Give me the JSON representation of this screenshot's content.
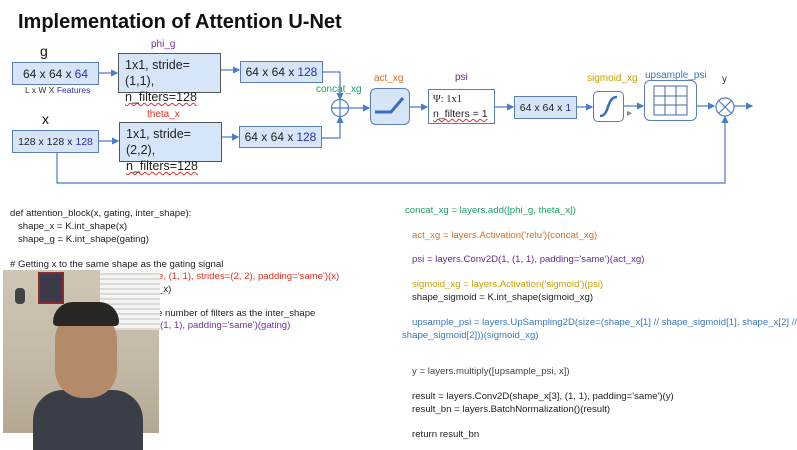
{
  "title": "Implementation of Attention U-Net",
  "diagram": {
    "g_label": "g",
    "g_dims": "64 x 64 x ",
    "g_feat": "64",
    "g_axes": "L x W X ",
    "g_axes_feat": "Features",
    "phi_label": "phi_g",
    "phi_line1": "1x1, stride=(1,1),",
    "phi_line2": "n_filters=128",
    "phi_out_dims": "64 x 64 x ",
    "phi_out_feat": "128",
    "x_label": "x",
    "x_dims": "128 x 128 x ",
    "x_feat": "128",
    "theta_label": "theta_x",
    "theta_line1": "1x1, stride=(2,2),",
    "theta_line2": "n_filters=128",
    "theta_out_dims": "64 x 64 x ",
    "theta_out_feat": "128",
    "concat_label": "concat_xg",
    "act_label": "act_xg",
    "psi_label": "psi",
    "psi_line1": "Ψ: 1x1",
    "psi_line2": "n_filters = 1",
    "psi_out_dims": "64 x 64 x ",
    "psi_out_feat": "1",
    "sigmoid_label": "sigmoid_xg",
    "upsample_label": "upsample_psi",
    "y_label": "y",
    "colors": {
      "phi": "#7030a0",
      "theta": "#e03020",
      "concat": "#1aa060",
      "act": "#d07020",
      "psi": "#6a2a8a",
      "sigmoid": "#c8a000",
      "upsample": "#3a78c0",
      "line": "#4a7cc8"
    }
  },
  "code_left": [
    "def attention_block(x, gating, inter_shape):",
    "   shape_x = K.int_shape(x)",
    "   shape_g = K.int_shape(gating)",
    "# Getting x to the same shape as the gating signal",
    "e, (1, 1), strides=(2, 2), padding='same')(x)",
    "_x)",
    "e number of filters as the inter_shape",
    "(1, 1), padding='same')(gating)"
  ],
  "code_right": [
    "concat_xg = layers.add([phi_g, theta_x])",
    "act_xg = layers.Activation('relu')(concat_xg)",
    "psi = layers.Conv2D(1, (1, 1), padding='same')(act_xg)",
    "sigmoid_xg = layers.Activation('sigmoid')(psi)",
    "shape_sigmoid = K.int_shape(sigmoid_xg)",
    "upsample_psi = layers.UpSampling2D(size=(shape_x[1] // shape_sigmoid[1], shape_x[2] //",
    "shape_sigmoid[2]))(sigmoid_xg)",
    "y = layers.multiply([upsample_psi, x])",
    "result = layers.Conv2D(shape_x[3], (1, 1), padding='same')(y)",
    "result_bn = layers.BatchNormalization()(result)",
    "return result_bn"
  ]
}
